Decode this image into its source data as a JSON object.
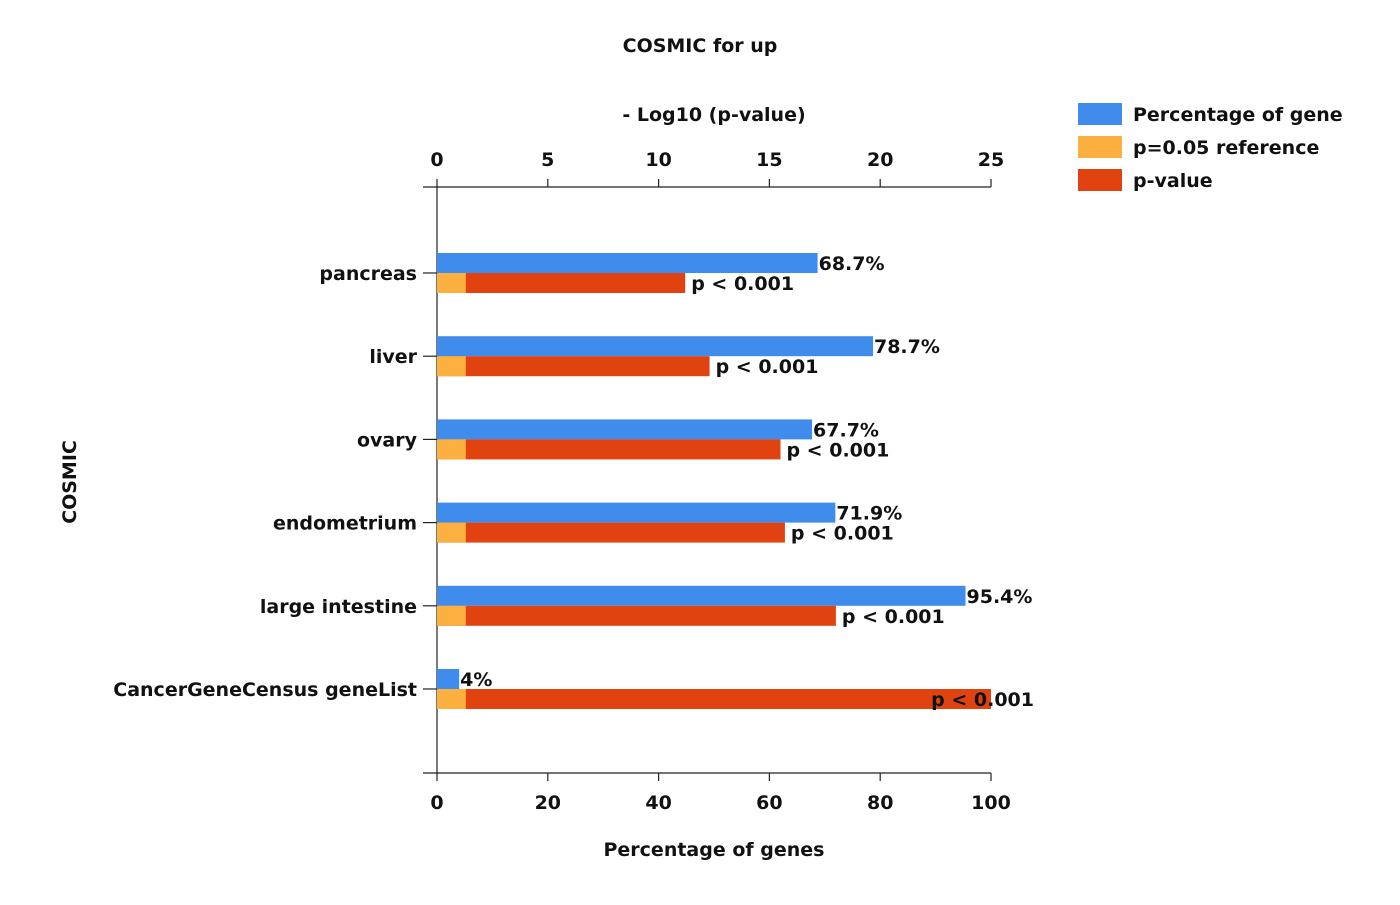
{
  "chart_data": {
    "type": "bar",
    "orientation": "horizontal",
    "title": "COSMIC for up",
    "ylabel": "COSMIC",
    "xlabel_bottom": "Percentage of genes",
    "xlabel_top": "- Log10 (p-value)",
    "categories": [
      "pancreas",
      "liver",
      "ovary",
      "endometrium",
      "large intestine",
      "CancerGeneCensus geneList"
    ],
    "bottom_axis": {
      "range": [
        0,
        100
      ],
      "ticks": [
        "0",
        "20",
        "40",
        "60",
        "80",
        "100"
      ]
    },
    "top_axis": {
      "range": [
        0,
        25
      ],
      "ticks": [
        "0",
        "5",
        "10",
        "15",
        "20",
        "25"
      ]
    },
    "series": [
      {
        "name": "Percentage of gene",
        "axis": "bottom",
        "color": "#3f8ced",
        "values": [
          68.7,
          78.7,
          67.7,
          71.9,
          95.4,
          4
        ],
        "labels": [
          "68.7%",
          "78.7%",
          "67.7%",
          "71.9%",
          "95.4%",
          "4%"
        ]
      },
      {
        "name": "p=0.05 reference",
        "axis": "top",
        "color": "#fbb040",
        "values": [
          1.3,
          1.3,
          1.3,
          1.3,
          1.3,
          1.3
        ]
      },
      {
        "name": "p-value",
        "axis": "top",
        "color": "#e0430f",
        "values": [
          11.2,
          12.3,
          15.5,
          15.7,
          18,
          25
        ],
        "labels": [
          "p < 0.001",
          "p < 0.001",
          "p < 0.001",
          "p < 0.001",
          "p < 0.001",
          "p < 0.001"
        ]
      }
    ],
    "legend_position": "top-right",
    "grid": false
  }
}
